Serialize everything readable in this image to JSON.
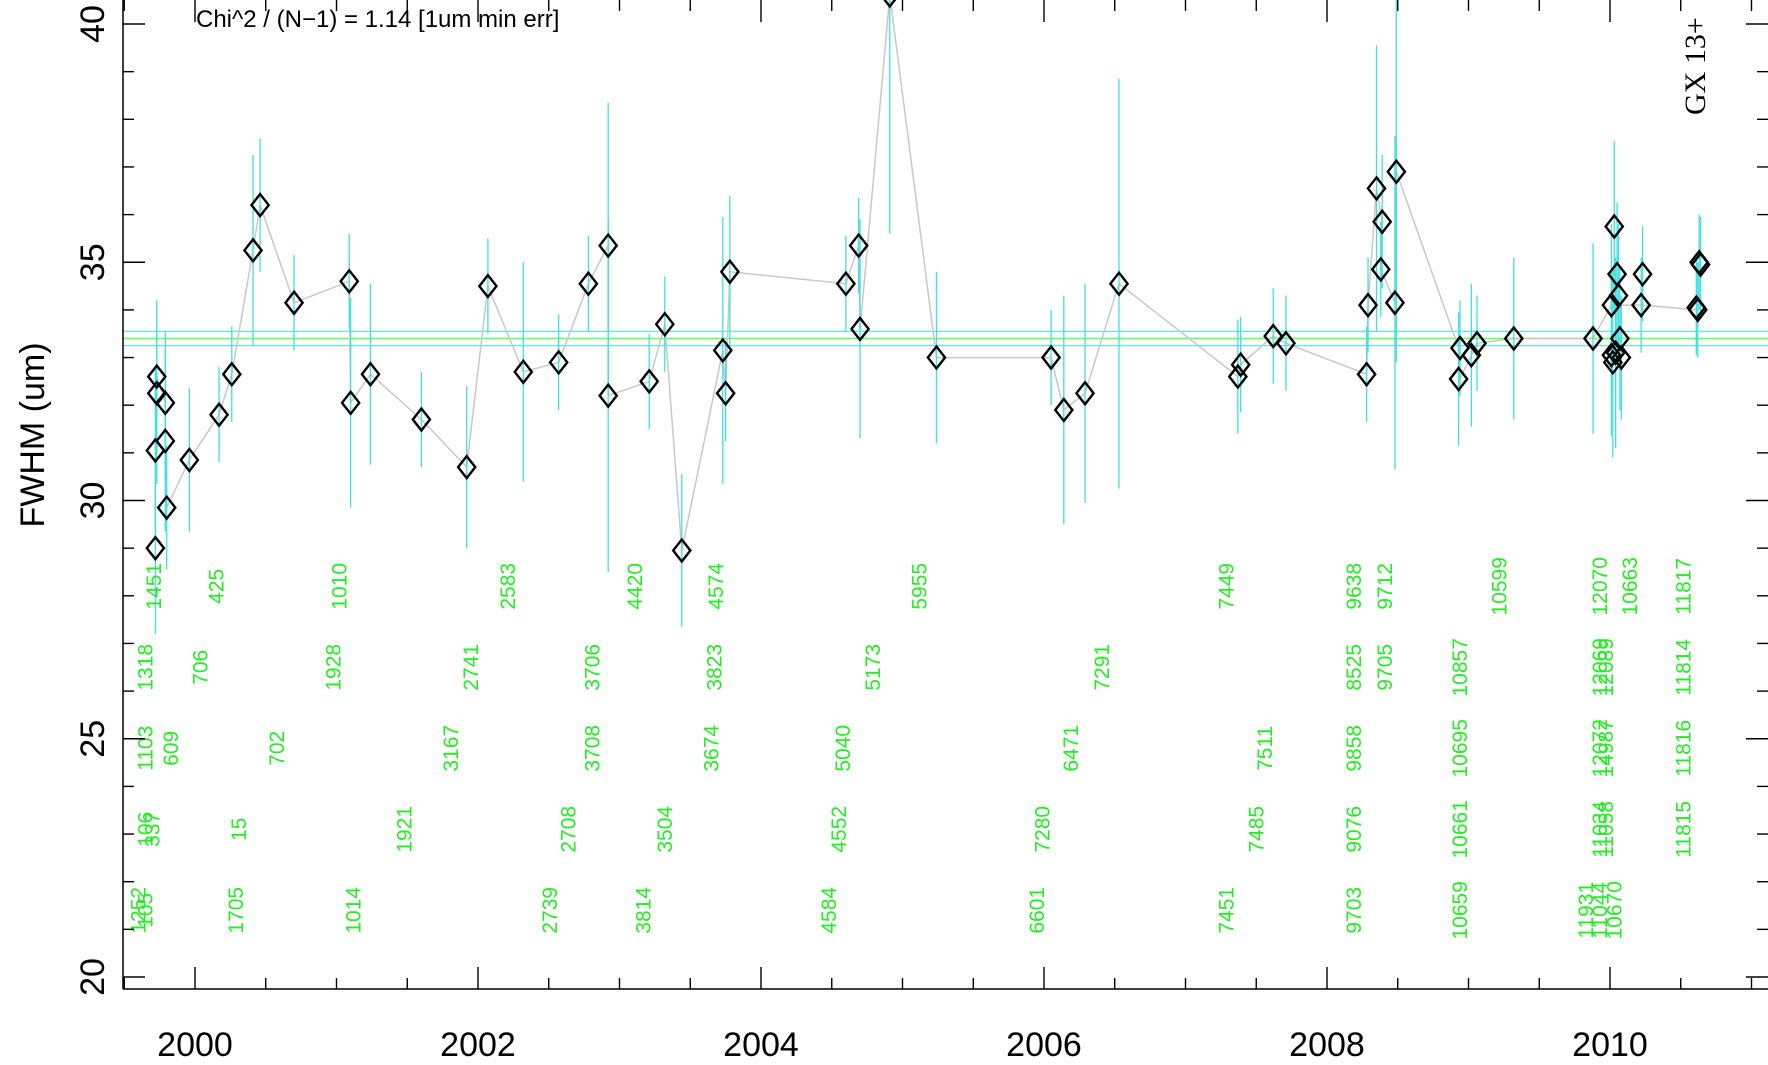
{
  "chart_data": {
    "type": "scatter",
    "annotation": "Chi^2 / (N−1) = 1.14  [1um min err]",
    "side_label": "GX 13+",
    "ylabel": "FWHM (um)",
    "xlabel": "",
    "xlim": [
      1998.5,
      2011.0
    ],
    "ylim": [
      19.6,
      40.6
    ],
    "x_major_ticks": [
      2000,
      2002,
      2004,
      2006,
      2008,
      2010
    ],
    "x_minor_step": 0.5,
    "y_major_ticks": [
      20,
      25,
      30,
      35,
      40
    ],
    "y_minor_step": 1,
    "grid": false,
    "colors": {
      "points": "#000000",
      "error_bars": "#40e0e0",
      "connector": "#c8c8c8",
      "obsid_labels": "#22ee22",
      "mean_line": "#60ff60",
      "band_lines": "#60e8e8"
    },
    "mean_line": 33.4,
    "band_lines": [
      33.25,
      33.55
    ],
    "points": [
      {
        "x": 1999.72,
        "y": 29.0,
        "err": 1.8
      },
      {
        "x": 1999.72,
        "y": 31.05,
        "err": 1.7
      },
      {
        "x": 1999.73,
        "y": 32.25,
        "err": 1.9
      },
      {
        "x": 1999.73,
        "y": 32.6,
        "err": 1.6
      },
      {
        "x": 1999.79,
        "y": 32.05,
        "err": 1.5
      },
      {
        "x": 1999.79,
        "y": 31.25,
        "err": 1.9
      },
      {
        "x": 1999.8,
        "y": 29.85,
        "err": 1.3
      },
      {
        "x": 1999.96,
        "y": 30.85,
        "err": 1.5
      },
      {
        "x": 2000.17,
        "y": 31.8,
        "err": 1.0
      },
      {
        "x": 2000.26,
        "y": 32.65,
        "err": 1.0
      },
      {
        "x": 2000.41,
        "y": 35.25,
        "err": 2.0
      },
      {
        "x": 2000.46,
        "y": 36.2,
        "err": 1.4
      },
      {
        "x": 2000.7,
        "y": 34.15,
        "err": 1.0
      },
      {
        "x": 2001.09,
        "y": 34.6,
        "err": 1.0
      },
      {
        "x": 2001.1,
        "y": 32.05,
        "err": 2.2
      },
      {
        "x": 2001.24,
        "y": 32.65,
        "err": 1.9
      },
      {
        "x": 2001.6,
        "y": 31.7,
        "err": 1.0
      },
      {
        "x": 2001.92,
        "y": 30.7,
        "err": 1.7
      },
      {
        "x": 2002.07,
        "y": 34.5,
        "err": 1.0
      },
      {
        "x": 2002.32,
        "y": 32.7,
        "err": 2.3
      },
      {
        "x": 2002.57,
        "y": 32.9,
        "err": 1.0
      },
      {
        "x": 2002.78,
        "y": 34.55,
        "err": 1.0
      },
      {
        "x": 2002.92,
        "y": 32.2,
        "err": 3.7
      },
      {
        "x": 2002.92,
        "y": 35.35,
        "err": 3.0
      },
      {
        "x": 2003.21,
        "y": 32.5,
        "err": 1.0
      },
      {
        "x": 2003.32,
        "y": 33.7,
        "err": 1.0
      },
      {
        "x": 2003.44,
        "y": 28.95,
        "err": 1.6
      },
      {
        "x": 2003.73,
        "y": 33.15,
        "err": 2.8
      },
      {
        "x": 2003.75,
        "y": 32.25,
        "err": 1.0
      },
      {
        "x": 2003.78,
        "y": 34.8,
        "err": 1.6
      },
      {
        "x": 2004.6,
        "y": 34.55,
        "err": 1.0
      },
      {
        "x": 2004.69,
        "y": 35.35,
        "err": 1.0
      },
      {
        "x": 2004.7,
        "y": 33.6,
        "err": 2.3
      },
      {
        "x": 2004.91,
        "y": 40.6,
        "err": 5.0
      },
      {
        "x": 2005.24,
        "y": 33.0,
        "err": 1.8
      },
      {
        "x": 2006.05,
        "y": 33.0,
        "err": 1.0
      },
      {
        "x": 2006.14,
        "y": 31.9,
        "err": 2.4
      },
      {
        "x": 2006.29,
        "y": 32.25,
        "err": 2.3
      },
      {
        "x": 2006.53,
        "y": 34.55,
        "err": 4.3
      },
      {
        "x": 2007.37,
        "y": 32.6,
        "err": 1.2
      },
      {
        "x": 2007.39,
        "y": 32.85,
        "err": 1.0
      },
      {
        "x": 2007.62,
        "y": 33.45,
        "err": 1.0
      },
      {
        "x": 2007.71,
        "y": 33.3,
        "err": 1.0
      },
      {
        "x": 2008.28,
        "y": 32.65,
        "err": 1.0
      },
      {
        "x": 2008.29,
        "y": 34.1,
        "err": 1.0
      },
      {
        "x": 2008.35,
        "y": 36.55,
        "err": 3.0
      },
      {
        "x": 2008.38,
        "y": 34.85,
        "err": 1.0
      },
      {
        "x": 2008.39,
        "y": 35.85,
        "err": 1.4
      },
      {
        "x": 2008.48,
        "y": 34.15,
        "err": 3.5
      },
      {
        "x": 2008.49,
        "y": 36.9,
        "err": 4.0
      },
      {
        "x": 2008.93,
        "y": 32.55,
        "err": 1.4
      },
      {
        "x": 2008.94,
        "y": 33.2,
        "err": 1.0
      },
      {
        "x": 2009.02,
        "y": 33.05,
        "err": 1.5
      },
      {
        "x": 2009.06,
        "y": 33.3,
        "err": 1.0
      },
      {
        "x": 2009.32,
        "y": 33.4,
        "err": 1.7
      },
      {
        "x": 2009.88,
        "y": 33.4,
        "err": 2.0
      },
      {
        "x": 2010.01,
        "y": 33.05,
        "err": 1.7
      },
      {
        "x": 2010.01,
        "y": 34.1,
        "err": 1.7
      },
      {
        "x": 2010.02,
        "y": 32.9,
        "err": 2.0
      },
      {
        "x": 2010.03,
        "y": 35.75,
        "err": 1.8
      },
      {
        "x": 2010.04,
        "y": 33.1,
        "err": 2.0
      },
      {
        "x": 2010.05,
        "y": 34.75,
        "err": 1.5
      },
      {
        "x": 2010.06,
        "y": 34.3,
        "err": 1.5
      },
      {
        "x": 2010.07,
        "y": 33.4,
        "err": 1.5
      },
      {
        "x": 2010.08,
        "y": 33.0,
        "err": 1.3
      },
      {
        "x": 2010.22,
        "y": 34.1,
        "err": 1.0
      },
      {
        "x": 2010.23,
        "y": 34.75,
        "err": 1.0
      },
      {
        "x": 2010.61,
        "y": 34.05,
        "err": 1.0
      },
      {
        "x": 2010.62,
        "y": 34.0,
        "err": 1.0
      },
      {
        "x": 2010.63,
        "y": 35.0,
        "err": 1.0
      },
      {
        "x": 2010.64,
        "y": 34.95,
        "err": 1.0
      }
    ],
    "connector": [
      [
        1999.72,
        29.0
      ],
      [
        1999.72,
        31.05
      ],
      [
        1999.73,
        32.25
      ],
      [
        1999.73,
        32.6
      ],
      [
        1999.79,
        32.05
      ],
      [
        1999.79,
        31.25
      ],
      [
        1999.8,
        29.85
      ],
      [
        1999.96,
        30.85
      ],
      [
        2000.17,
        31.8
      ],
      [
        2000.26,
        32.65
      ],
      [
        2000.41,
        35.25
      ],
      [
        2000.46,
        36.2
      ],
      [
        2000.7,
        34.15
      ],
      [
        2001.09,
        34.6
      ],
      [
        2001.1,
        32.05
      ],
      [
        2001.24,
        32.65
      ],
      [
        2001.6,
        31.7
      ],
      [
        2001.92,
        30.7
      ],
      [
        2002.07,
        34.5
      ],
      [
        2002.32,
        32.7
      ],
      [
        2002.57,
        32.9
      ],
      [
        2002.78,
        34.55
      ],
      [
        2002.92,
        35.35
      ],
      [
        2002.92,
        32.2
      ],
      [
        2003.21,
        32.5
      ],
      [
        2003.32,
        33.7
      ],
      [
        2003.44,
        28.95
      ],
      [
        2003.73,
        33.15
      ],
      [
        2003.75,
        32.25
      ],
      [
        2003.78,
        34.8
      ],
      [
        2004.6,
        34.55
      ],
      [
        2004.69,
        35.35
      ],
      [
        2004.7,
        33.6
      ],
      [
        2004.91,
        40.6
      ],
      [
        2005.24,
        33.0
      ],
      [
        2006.05,
        33.0
      ],
      [
        2006.14,
        31.9
      ],
      [
        2006.29,
        32.25
      ],
      [
        2006.53,
        34.55
      ],
      [
        2007.37,
        32.6
      ],
      [
        2007.39,
        32.85
      ],
      [
        2007.62,
        33.45
      ],
      [
        2007.71,
        33.3
      ],
      [
        2008.28,
        32.65
      ],
      [
        2008.29,
        34.1
      ],
      [
        2008.35,
        36.55
      ],
      [
        2008.39,
        35.85
      ],
      [
        2008.38,
        34.85
      ],
      [
        2008.48,
        34.15
      ],
      [
        2008.49,
        36.9
      ],
      [
        2008.93,
        33.2
      ],
      [
        2008.94,
        32.55
      ],
      [
        2009.02,
        33.05
      ],
      [
        2009.06,
        33.3
      ],
      [
        2009.32,
        33.4
      ],
      [
        2009.88,
        33.4
      ],
      [
        2010.01,
        34.1
      ],
      [
        2010.22,
        34.1
      ],
      [
        2010.62,
        34.0
      ]
    ],
    "obsid_labels": [
      {
        "text": "1451",
        "x": 1999.76,
        "y": 28.2
      },
      {
        "text": "425",
        "x": 2000.2,
        "y": 28.2
      },
      {
        "text": "1010",
        "x": 2001.07,
        "y": 28.2
      },
      {
        "text": "2583",
        "x": 2002.26,
        "y": 28.2
      },
      {
        "text": "4420",
        "x": 2003.16,
        "y": 28.2
      },
      {
        "text": "4574",
        "x": 2003.73,
        "y": 28.2
      },
      {
        "text": "5955",
        "x": 2005.17,
        "y": 28.2
      },
      {
        "text": "7449",
        "x": 2007.34,
        "y": 28.2
      },
      {
        "text": "9638",
        "x": 2008.24,
        "y": 28.2
      },
      {
        "text": "9712",
        "x": 2008.46,
        "y": 28.2
      },
      {
        "text": "10599",
        "x": 2009.27,
        "y": 28.2
      },
      {
        "text": "12070",
        "x": 2009.98,
        "y": 28.2
      },
      {
        "text": "10663",
        "x": 2010.19,
        "y": 28.2
      },
      {
        "text": "11817",
        "x": 2010.57,
        "y": 28.2
      },
      {
        "text": "1318",
        "x": 1999.7,
        "y": 26.5
      },
      {
        "text": "706",
        "x": 2000.09,
        "y": 26.5
      },
      {
        "text": "1928",
        "x": 2001.03,
        "y": 26.5
      },
      {
        "text": "2741",
        "x": 2002.0,
        "y": 26.5
      },
      {
        "text": "3706",
        "x": 2002.86,
        "y": 26.5
      },
      {
        "text": "3823",
        "x": 2003.72,
        "y": 26.5
      },
      {
        "text": "5173",
        "x": 2004.84,
        "y": 26.5
      },
      {
        "text": "7291",
        "x": 2006.46,
        "y": 26.5
      },
      {
        "text": "8525",
        "x": 2008.24,
        "y": 26.5
      },
      {
        "text": "9705",
        "x": 2008.46,
        "y": 26.5
      },
      {
        "text": "10857",
        "x": 2008.99,
        "y": 26.5
      },
      {
        "text": "12069",
        "x": 2009.98,
        "y": 26.5
      },
      {
        "text": "12089",
        "x": 2010.02,
        "y": 26.5
      },
      {
        "text": "11814",
        "x": 2010.57,
        "y": 26.5
      },
      {
        "text": "1103",
        "x": 1999.7,
        "y": 24.8
      },
      {
        "text": "609",
        "x": 1999.88,
        "y": 24.8
      },
      {
        "text": "702",
        "x": 2000.63,
        "y": 24.8
      },
      {
        "text": "3167",
        "x": 2001.86,
        "y": 24.8
      },
      {
        "text": "3708",
        "x": 2002.86,
        "y": 24.8
      },
      {
        "text": "3674",
        "x": 2003.7,
        "y": 24.8
      },
      {
        "text": "5040",
        "x": 2004.63,
        "y": 24.8
      },
      {
        "text": "6471",
        "x": 2006.24,
        "y": 24.8
      },
      {
        "text": "7511",
        "x": 2007.61,
        "y": 24.8
      },
      {
        "text": "9858",
        "x": 2008.24,
        "y": 24.8
      },
      {
        "text": "10695",
        "x": 2008.99,
        "y": 24.8
      },
      {
        "text": "12072",
        "x": 2009.98,
        "y": 24.8
      },
      {
        "text": "14987",
        "x": 2010.02,
        "y": 24.8
      },
      {
        "text": "11816",
        "x": 2010.57,
        "y": 24.8
      },
      {
        "text": "106",
        "x": 1999.7,
        "y": 23.1
      },
      {
        "text": "337",
        "x": 1999.75,
        "y": 23.1
      },
      {
        "text": "15",
        "x": 2000.36,
        "y": 23.1
      },
      {
        "text": "1921",
        "x": 2001.53,
        "y": 23.1
      },
      {
        "text": "2708",
        "x": 2002.69,
        "y": 23.1
      },
      {
        "text": "3504",
        "x": 2003.37,
        "y": 23.1
      },
      {
        "text": "4552",
        "x": 2004.6,
        "y": 23.1
      },
      {
        "text": "7280",
        "x": 2006.04,
        "y": 23.1
      },
      {
        "text": "7485",
        "x": 2007.55,
        "y": 23.1
      },
      {
        "text": "9076",
        "x": 2008.24,
        "y": 23.1
      },
      {
        "text": "10661",
        "x": 2008.99,
        "y": 23.1
      },
      {
        "text": "11034",
        "x": 2009.98,
        "y": 23.1
      },
      {
        "text": "11058",
        "x": 2010.02,
        "y": 23.1
      },
      {
        "text": "11815",
        "x": 2010.57,
        "y": 23.1
      },
      {
        "text": "1252",
        "x": 1999.65,
        "y": 21.4
      },
      {
        "text": "105",
        "x": 1999.7,
        "y": 21.4
      },
      {
        "text": "1705",
        "x": 2000.34,
        "y": 21.4
      },
      {
        "text": "1014",
        "x": 2001.17,
        "y": 21.4
      },
      {
        "text": "2739",
        "x": 2002.56,
        "y": 21.4
      },
      {
        "text": "3814",
        "x": 2003.22,
        "y": 21.4
      },
      {
        "text": "4584",
        "x": 2004.53,
        "y": 21.4
      },
      {
        "text": "6601",
        "x": 2006.0,
        "y": 21.4
      },
      {
        "text": "7451",
        "x": 2007.34,
        "y": 21.4
      },
      {
        "text": "9703",
        "x": 2008.24,
        "y": 21.4
      },
      {
        "text": "10659",
        "x": 2008.99,
        "y": 21.4
      },
      {
        "text": "11931",
        "x": 2009.88,
        "y": 21.4
      },
      {
        "text": "11044",
        "x": 2009.98,
        "y": 21.4
      },
      {
        "text": "10670",
        "x": 2010.08,
        "y": 21.4
      }
    ]
  }
}
